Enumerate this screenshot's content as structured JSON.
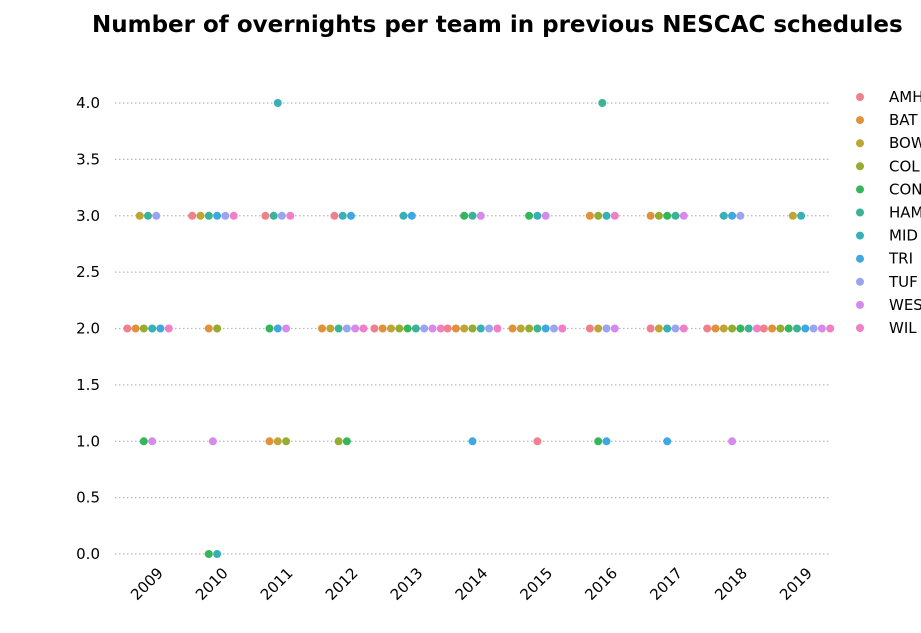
{
  "chart_data": {
    "type": "scatter",
    "title": "Number of overnights per team in previous NESCAC schedules",
    "xlabel": "",
    "ylabel": "",
    "categories": [
      "2009",
      "2010",
      "2011",
      "2012",
      "2013",
      "2014",
      "2015",
      "2016",
      "2017",
      "2018",
      "2019"
    ],
    "ylim": [
      0,
      4
    ],
    "yticks": [
      0.0,
      0.5,
      1.0,
      1.5,
      2.0,
      2.5,
      3.0,
      3.5,
      4.0
    ],
    "ytick_labels": [
      "0.0",
      "0.5",
      "1.0",
      "1.5",
      "2.0",
      "2.5",
      "3.0",
      "3.5",
      "4.0"
    ],
    "grid": "horizontal-dotted",
    "legend_position": "right",
    "series": [
      {
        "name": "AMH",
        "color": "#f0818c",
        "values": [
          2,
          3,
          3,
          3,
          2,
          2,
          1,
          2,
          2,
          2,
          2
        ]
      },
      {
        "name": "BAT",
        "color": "#e0913a",
        "values": [
          2,
          2,
          1,
          2,
          2,
          2,
          2,
          3,
          3,
          2,
          2
        ]
      },
      {
        "name": "BOW",
        "color": "#bfa535",
        "values": [
          3,
          3,
          1,
          2,
          2,
          2,
          2,
          2,
          2,
          2,
          3
        ]
      },
      {
        "name": "COL",
        "color": "#94ad31",
        "values": [
          2,
          2,
          1,
          1,
          2,
          2,
          2,
          3,
          3,
          2,
          2
        ]
      },
      {
        "name": "CON",
        "color": "#36b65b",
        "values": [
          1,
          0,
          2,
          1,
          2,
          3,
          3,
          1,
          3,
          2,
          2
        ]
      },
      {
        "name": "HAM",
        "color": "#3bb397",
        "values": [
          3,
          3,
          3,
          2,
          2,
          3,
          2,
          4,
          3,
          2,
          2
        ]
      },
      {
        "name": "MID",
        "color": "#37b1b6",
        "values": [
          2,
          0,
          4,
          3,
          3,
          2,
          3,
          3,
          2,
          3,
          3
        ]
      },
      {
        "name": "TRI",
        "color": "#3fa8e0",
        "values": [
          2,
          3,
          2,
          3,
          3,
          1,
          2,
          1,
          1,
          3,
          2
        ]
      },
      {
        "name": "TUF",
        "color": "#9aa5f2",
        "values": [
          3,
          3,
          3,
          2,
          2,
          2,
          2,
          2,
          2,
          3,
          2
        ]
      },
      {
        "name": "WES",
        "color": "#d68aed",
        "values": [
          1,
          1,
          2,
          2,
          2,
          3,
          3,
          2,
          3,
          1,
          2
        ]
      },
      {
        "name": "WIL",
        "color": "#f07fc7",
        "values": [
          2,
          3,
          3,
          2,
          2,
          2,
          2,
          3,
          2,
          2,
          2
        ]
      }
    ]
  }
}
